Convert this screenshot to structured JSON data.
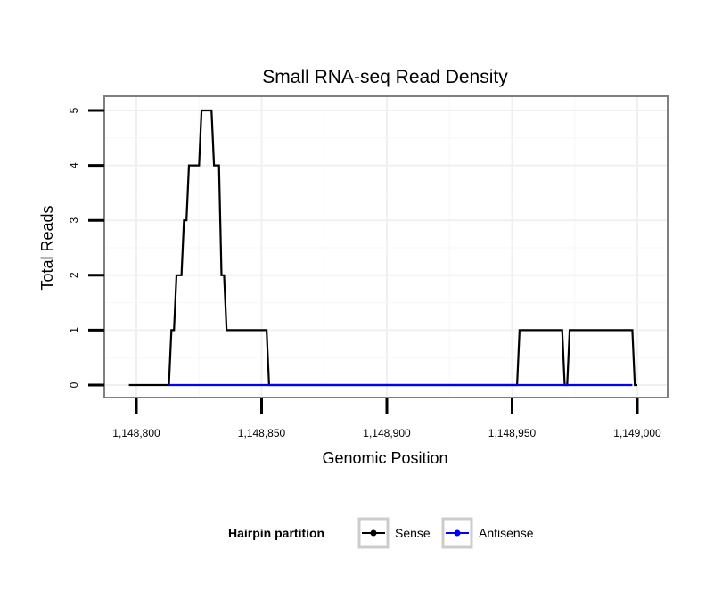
{
  "chart_data": {
    "type": "line",
    "title": "Small RNA-seq Read Density",
    "xlabel": "Genomic Position",
    "ylabel": "Total Reads",
    "xlim": [
      1148797,
      1149012
    ],
    "ylim": [
      -0.2,
      5.25
    ],
    "x_ticks": [
      1148800,
      1148850,
      1148900,
      1148950,
      1149000
    ],
    "x_tick_labels": [
      "1,148,800",
      "1,148,850",
      "1,148,900",
      "1,148,950",
      "1,149,000"
    ],
    "y_ticks": [
      0,
      1,
      2,
      3,
      4,
      5
    ],
    "y_tick_labels": [
      "0",
      "1",
      "2",
      "3",
      "4",
      "5"
    ],
    "grid": true,
    "legend": {
      "title": "Hairpin partition",
      "position": "bottom",
      "entries": [
        "Sense",
        "Antisense"
      ]
    },
    "series": [
      {
        "name": "Sense",
        "color": "#000000",
        "x": [
          1148797,
          1148813,
          1148814,
          1148815,
          1148816,
          1148817,
          1148818,
          1148819,
          1148820,
          1148821,
          1148822,
          1148823,
          1148825,
          1148826,
          1148827,
          1148828,
          1148829,
          1148830,
          1148831,
          1148832,
          1148833,
          1148834,
          1148835,
          1148836,
          1148837,
          1148838,
          1148839,
          1148840,
          1148841,
          1148852,
          1148853,
          1148952,
          1148953,
          1148970,
          1148971,
          1148972,
          1148973,
          1148998,
          1148999,
          1149000
        ],
        "y": [
          0,
          0,
          1,
          1,
          2,
          2,
          2,
          3,
          3,
          4,
          4,
          4,
          4,
          5,
          5,
          5,
          5,
          5,
          4,
          4,
          4,
          2,
          2,
          1,
          1,
          1,
          1,
          1,
          1,
          1,
          0,
          0,
          1,
          1,
          0,
          0,
          1,
          1,
          0,
          0
        ]
      },
      {
        "name": "Antisense",
        "color": "#0000ff",
        "x": [
          1148813,
          1148853,
          1148952,
          1148998
        ],
        "y": [
          0,
          0,
          0,
          0
        ]
      }
    ]
  }
}
